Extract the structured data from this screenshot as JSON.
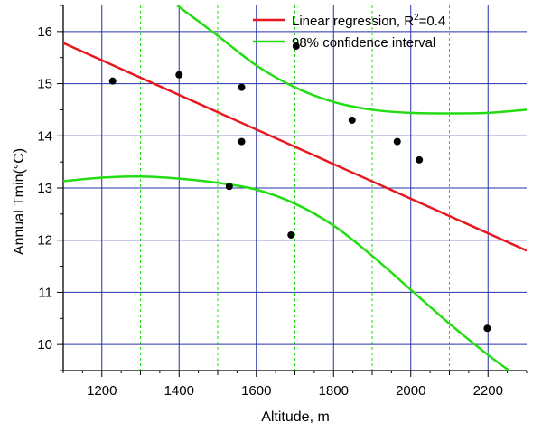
{
  "chart_data": {
    "type": "scatter",
    "xlabel": "Altitude, m",
    "ylabel": "Annual Tmin(°C)",
    "xlim": [
      1100,
      2300
    ],
    "ylim": [
      9.5,
      16.5
    ],
    "x_ticks": [
      1200,
      1400,
      1600,
      1800,
      2000,
      2200
    ],
    "x_minor_ticks": [
      1300,
      1500,
      1700,
      1900,
      2100
    ],
    "y_ticks": [
      10,
      11,
      12,
      13,
      14,
      15,
      16
    ],
    "grid": true,
    "legend_position": "top-right",
    "colors": {
      "regression": "#e8171f",
      "confidence": "#22dd11",
      "points": "#000000",
      "major_grid": "#2630a8",
      "minor_grid": "#22dd11"
    },
    "points": {
      "x": [
        1228,
        1400,
        1530,
        1562,
        1562,
        1690,
        1703,
        1848,
        1965,
        2022,
        2198
      ],
      "y": [
        15.05,
        15.17,
        13.03,
        14.93,
        13.89,
        12.1,
        15.72,
        14.3,
        13.89,
        13.54,
        10.31
      ]
    },
    "regression": {
      "legend": "Linear regression, R",
      "legend_sup": "2",
      "legend_suffix": "=0.4",
      "x": [
        1100,
        2300
      ],
      "y": [
        15.78,
        11.8
      ]
    },
    "confidence_interval": {
      "legend": "98% confidence interval",
      "upper": {
        "x": [
          1395,
          1500,
          1600,
          1700,
          1800,
          1900,
          2000,
          2100,
          2200,
          2300
        ],
        "y": [
          16.5,
          15.92,
          15.35,
          14.93,
          14.65,
          14.5,
          14.44,
          14.43,
          14.44,
          14.5
        ]
      },
      "lower": {
        "x": [
          1100,
          1200,
          1300,
          1400,
          1500,
          1600,
          1700,
          1800,
          1900,
          2000,
          2100,
          2200,
          2255
        ],
        "y": [
          13.13,
          13.2,
          13.22,
          13.18,
          13.1,
          12.97,
          12.7,
          12.28,
          11.7,
          11.05,
          10.4,
          9.8,
          9.5
        ]
      }
    }
  }
}
